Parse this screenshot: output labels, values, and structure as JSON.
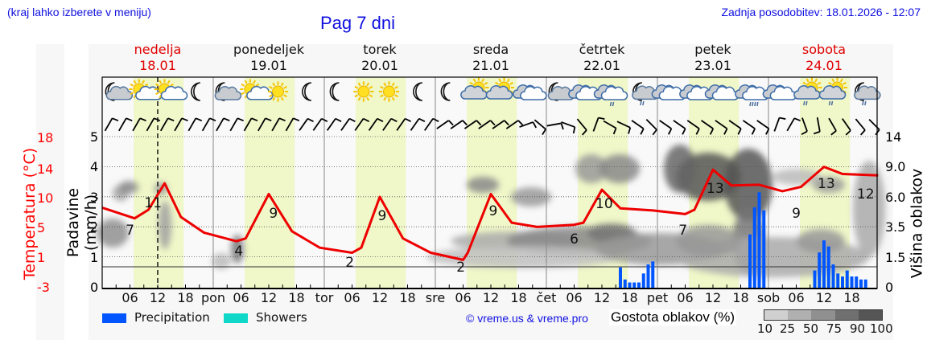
{
  "header": {
    "hint": "(kraj lahko izberete v meniju)",
    "title": "Pag 7 dni",
    "updated": "Zadnja posodobitev: 18.01.2026 - 12:07"
  },
  "days": [
    {
      "name": "nedelja",
      "date": "18.01",
      "color": "red"
    },
    {
      "name": "ponedeljek",
      "date": "19.01",
      "color": "black"
    },
    {
      "name": "torek",
      "date": "20.01",
      "color": "black"
    },
    {
      "name": "sreda",
      "date": "21.01",
      "color": "black"
    },
    {
      "name": "četrtek",
      "date": "22.01",
      "color": "black"
    },
    {
      "name": "petek",
      "date": "23.01",
      "color": "black"
    },
    {
      "name": "sobota",
      "date": "24.01",
      "color": "red"
    }
  ],
  "weather_icons": [
    "night-partly-cloudy",
    "sun-cloud",
    "sun-cloud",
    "moon",
    "night-cloudy",
    "sun-cloud",
    "sun",
    "moon",
    "moon",
    "sun",
    "sun",
    "moon",
    "moon",
    "cloud-sun",
    "cloud-sun",
    "cloudy",
    "night-cloudy",
    "cloudy",
    "cloudy-light-rain",
    "night-rain",
    "cloudy",
    "cloudy",
    "cloudy",
    "cloudy-rain",
    "cloudy",
    "cloud-sun-rain",
    "cloud-sun-rain",
    "night-rain"
  ],
  "axes": {
    "temp_title": "Temperatura (°C)",
    "temp_ticks": [
      "18",
      "14",
      "10",
      "5",
      "1",
      "-3"
    ],
    "prec_title": "Padavine (mm/h)",
    "prec_ticks": [
      "5",
      "4",
      "3",
      "2",
      "1",
      "0"
    ],
    "cloud_title": "Višina oblakov (km)",
    "cloud_ticks": [
      "14",
      "9.0",
      "6.0",
      "3.5",
      "1.5",
      "0"
    ],
    "x_ticks": [
      "06",
      "12",
      "18",
      "pon",
      "06",
      "12",
      "18",
      "tor",
      "06",
      "12",
      "18",
      "sre",
      "06",
      "12",
      "18",
      "čet",
      "06",
      "12",
      "18",
      "pet",
      "06",
      "12",
      "18",
      "sob",
      "06",
      "12",
      "18"
    ]
  },
  "legend": {
    "precipitation": "Precipitation",
    "showers": "Showers",
    "precip_color": "#0055ff",
    "showers_color": "#10d8c8",
    "copyright": "© vreme.us & vreme.pro",
    "density_title": "Gostota oblakov (%)",
    "density_labels": [
      "10",
      "25",
      "50",
      "75",
      "90",
      "100"
    ],
    "density_colors": [
      "#d0d0d0",
      "#b0b0b0",
      "#909090",
      "#707070",
      "#555555"
    ]
  },
  "chart_data": {
    "type": "line",
    "title": "Pag 7 dni",
    "xlabel": "",
    "ylabel": "Temperatura (°C) / Padavine (mm/h)",
    "y2label": "Višina oblakov (km)",
    "ylim_temp": [
      -3,
      18
    ],
    "ylim_precip": [
      0,
      5
    ],
    "grid": true,
    "series": [
      {
        "name": "Temperatura",
        "color": "#ff0000",
        "annotations": [
          {
            "time": "18.01 06",
            "value": 7
          },
          {
            "time": "18.01 12",
            "value": 11
          },
          {
            "time": "19.01 06",
            "value": 4
          },
          {
            "time": "19.01 12",
            "value": 9
          },
          {
            "time": "20.01 06",
            "value": 2
          },
          {
            "time": "20.01 12",
            "value": 9
          },
          {
            "time": "21.01 06",
            "value": 2
          },
          {
            "time": "21.01 12",
            "value": 9
          },
          {
            "time": "22.01 06",
            "value": 6
          },
          {
            "time": "22.01 12",
            "value": 10
          },
          {
            "time": "23.01 06",
            "value": 7
          },
          {
            "time": "23.01 12",
            "value": 13
          },
          {
            "time": "24.01 06",
            "value": 9
          },
          {
            "time": "24.01 12",
            "value": 13
          },
          {
            "time": "24.01 24",
            "value": 12
          }
        ]
      },
      {
        "name": "Precipitation",
        "color": "#0055ff",
        "type": "bar",
        "values": [
          {
            "time": "22.01 16",
            "mm": 0.7
          },
          {
            "time": "22.01 17",
            "mm": 0.3
          },
          {
            "time": "22.01 18",
            "mm": 0.2
          },
          {
            "time": "22.01 19",
            "mm": 0.2
          },
          {
            "time": "22.01 20",
            "mm": 0.2
          },
          {
            "time": "22.01 21",
            "mm": 0.5
          },
          {
            "time": "22.01 22",
            "mm": 0.8
          },
          {
            "time": "22.01 23",
            "mm": 0.9
          },
          {
            "time": "23.01 20",
            "mm": 1.8
          },
          {
            "time": "23.01 21",
            "mm": 2.7
          },
          {
            "time": "23.01 22",
            "mm": 3.2
          },
          {
            "time": "23.01 23",
            "mm": 2.6
          },
          {
            "time": "24.01 10",
            "mm": 0.6
          },
          {
            "time": "24.01 11",
            "mm": 1.2
          },
          {
            "time": "24.01 12",
            "mm": 1.6
          },
          {
            "time": "24.01 13",
            "mm": 1.4
          },
          {
            "time": "24.01 14",
            "mm": 0.8
          },
          {
            "time": "24.01 15",
            "mm": 0.5
          },
          {
            "time": "24.01 16",
            "mm": 0.4
          },
          {
            "time": "24.01 17",
            "mm": 0.6
          },
          {
            "time": "24.01 18",
            "mm": 0.4
          },
          {
            "time": "24.01 19",
            "mm": 0.4
          },
          {
            "time": "24.01 20",
            "mm": 0.3
          },
          {
            "time": "24.01 21",
            "mm": 0.3
          }
        ]
      }
    ]
  }
}
